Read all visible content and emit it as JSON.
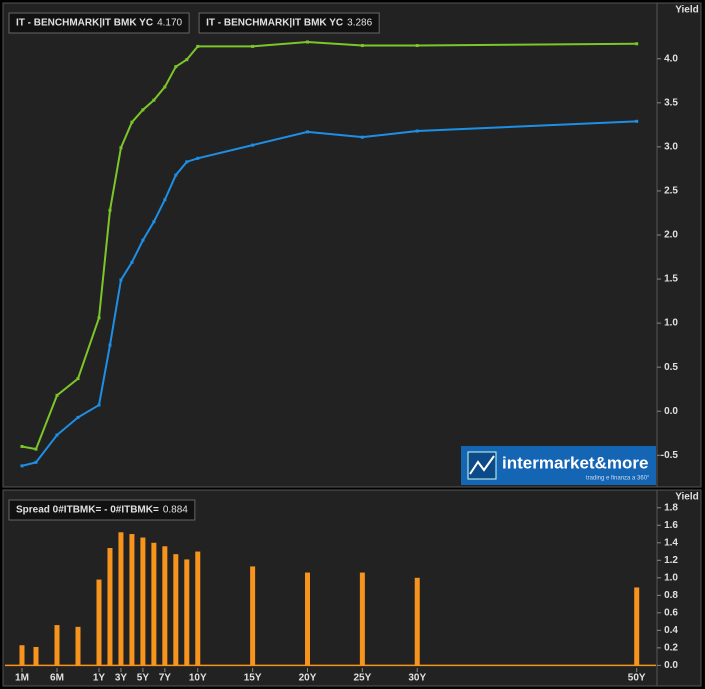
{
  "chart_data": [
    {
      "type": "line",
      "y_label": "Yield",
      "x": [
        1,
        3,
        6,
        9,
        12,
        24,
        36,
        48,
        60,
        72,
        84,
        96,
        108,
        120,
        180,
        240,
        300,
        360,
        600
      ],
      "xlim": [
        0,
        620
      ],
      "series": [
        {
          "name": "IT - BENCHMARK|IT BMK YC",
          "last": "4.170",
          "color": "#7cc62a",
          "values": [
            -0.4,
            -0.43,
            0.18,
            0.37,
            1.06,
            2.28,
            2.99,
            3.28,
            3.42,
            3.53,
            3.68,
            3.91,
            3.99,
            4.14,
            4.14,
            4.19,
            4.15,
            4.15,
            4.17
          ]
        },
        {
          "name": "IT - BENCHMARK|IT BMK YC",
          "last": "3.286",
          "color": "#1e8fe6",
          "values": [
            -0.62,
            -0.58,
            -0.27,
            -0.07,
            0.07,
            0.75,
            1.49,
            1.69,
            1.94,
            2.15,
            2.4,
            2.68,
            2.83,
            2.87,
            3.02,
            3.17,
            3.11,
            3.18,
            3.29
          ]
        }
      ],
      "ylim": [
        -0.86,
        4.61
      ],
      "yticks": [
        -0.5,
        {
          "value": 0,
          "label": "0.0"
        },
        0.5,
        {
          "value": 1,
          "label": "1.0"
        },
        1.5,
        {
          "value": 2,
          "label": "2.0"
        },
        2.5,
        {
          "value": 3,
          "label": "3.0"
        },
        3.5,
        {
          "value": 4,
          "label": "4.0"
        }
      ]
    },
    {
      "type": "bar",
      "y_label": "Yield",
      "x": [
        1,
        3,
        6,
        9,
        12,
        24,
        36,
        48,
        60,
        72,
        84,
        96,
        108,
        120,
        180,
        240,
        300,
        360,
        600
      ],
      "xlim": [
        0,
        620
      ],
      "xticks": [
        {
          "value": 1,
          "label": "1M"
        },
        {
          "value": 6,
          "label": "6M"
        },
        {
          "value": 12,
          "label": "1Y"
        },
        {
          "value": 36,
          "label": "3Y"
        },
        {
          "value": 60,
          "label": "5Y"
        },
        {
          "value": 84,
          "label": "7Y"
        },
        {
          "value": 120,
          "label": "10Y"
        },
        {
          "value": 180,
          "label": "15Y"
        },
        {
          "value": 240,
          "label": "20Y"
        },
        {
          "value": 300,
          "label": "25Y"
        },
        {
          "value": 360,
          "label": "30Y"
        },
        {
          "value": 600,
          "label": "50Y"
        }
      ],
      "series": [
        {
          "name": "Spread 0#ITBMK= - 0#ITBMK=",
          "last": "0.884",
          "color": "#f7941d",
          "values": [
            0.23,
            0.21,
            0.46,
            0.44,
            0.98,
            1.34,
            1.52,
            1.5,
            1.46,
            1.4,
            1.36,
            1.27,
            1.21,
            1.3,
            1.13,
            1.06,
            1.06,
            1.0,
            0.89
          ]
        }
      ],
      "ylim": [
        -0.03,
        1.98
      ],
      "yticks": [
        {
          "value": 0,
          "label": "0.0"
        },
        0.2,
        0.4,
        0.6,
        0.8,
        {
          "value": 1,
          "label": "1.0"
        },
        1.2,
        1.4,
        1.6,
        1.8
      ]
    }
  ],
  "logo": {
    "name": "intermarket&more",
    "tagline": "trading e finanza a 360°"
  }
}
